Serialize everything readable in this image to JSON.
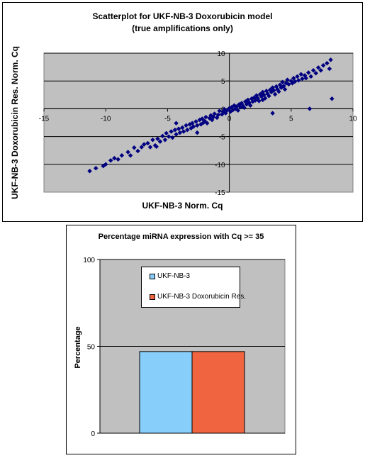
{
  "chart_data": [
    {
      "type": "scatter",
      "title": "Scatterplot for UKF-NB-3 Doxorubicin model",
      "subtitle": "(true amplifications only)",
      "xlabel": "UKF-NB-3 Norm. Cq",
      "ylabel": "UKF-NB-3 Doxorubicin Res. Norm. Cq",
      "xlim": [
        -15,
        10
      ],
      "ylim": [
        -15,
        10
      ],
      "xticks": [
        "-15",
        "-10",
        "-5",
        "0",
        "5",
        "10"
      ],
      "yticks": [
        "10",
        "5",
        "0",
        "-5",
        "-10",
        "-15"
      ],
      "grid": true,
      "colors": {
        "marker": "#000080",
        "plot_bg": "#c0c0c0"
      },
      "series": [
        {
          "points": [
            [
              -11.3,
              -11.2
            ],
            [
              -10.8,
              -10.7
            ],
            [
              -10.2,
              -10.3
            ],
            [
              -10.0,
              -10.0
            ],
            [
              -9.6,
              -9.3
            ],
            [
              -9.3,
              -8.9
            ],
            [
              -9.0,
              -9.1
            ],
            [
              -8.7,
              -8.4
            ],
            [
              -8.2,
              -7.8
            ],
            [
              -8.0,
              -8.4
            ],
            [
              -7.7,
              -7.0
            ],
            [
              -7.4,
              -7.6
            ],
            [
              -7.1,
              -6.9
            ],
            [
              -6.9,
              -6.4
            ],
            [
              -6.6,
              -6.2
            ],
            [
              -6.4,
              -6.9
            ],
            [
              -6.2,
              -5.6
            ],
            [
              -6.0,
              -6.6
            ],
            [
              -5.8,
              -5.4
            ],
            [
              -5.6,
              -5.9
            ],
            [
              -5.4,
              -4.9
            ],
            [
              -5.2,
              -5.6
            ],
            [
              -5.1,
              -4.4
            ],
            [
              -4.9,
              -5.0
            ],
            [
              -4.7,
              -4.1
            ],
            [
              -4.6,
              -5.2
            ],
            [
              -4.4,
              -3.8
            ],
            [
              -4.3,
              -4.6
            ],
            [
              -4.1,
              -3.6
            ],
            [
              -4.0,
              -4.3
            ],
            [
              -3.8,
              -3.4
            ],
            [
              -3.7,
              -4.1
            ],
            [
              -3.5,
              -3.0
            ],
            [
              -3.4,
              -3.8
            ],
            [
              -3.2,
              -2.8
            ],
            [
              -3.1,
              -3.5
            ],
            [
              -3.0,
              -2.6
            ],
            [
              -2.9,
              -3.2
            ],
            [
              -2.7,
              -2.3
            ],
            [
              -2.6,
              -3.0
            ],
            [
              -2.4,
              -2.0
            ],
            [
              -2.3,
              -2.8
            ],
            [
              -2.2,
              -1.8
            ],
            [
              -2.1,
              -2.5
            ],
            [
              -2.0,
              -2.2
            ],
            [
              -1.9,
              -1.5
            ],
            [
              -1.8,
              -2.6
            ],
            [
              -1.6,
              -1.7
            ],
            [
              -1.5,
              -1.2
            ],
            [
              -1.4,
              -2.0
            ],
            [
              -1.3,
              -1.5
            ],
            [
              -1.2,
              -0.9
            ],
            [
              -1.0,
              -1.6
            ],
            [
              -0.9,
              -1.1
            ],
            [
              -0.8,
              -0.4
            ],
            [
              -0.6,
              -1.0
            ],
            [
              -0.5,
              -0.5
            ],
            [
              -0.4,
              -0.1
            ],
            [
              -0.3,
              -0.8
            ],
            [
              -0.2,
              -0.3
            ],
            [
              0.0,
              0.1
            ],
            [
              0.1,
              -0.5
            ],
            [
              0.2,
              0.3
            ],
            [
              0.3,
              -0.2
            ],
            [
              0.4,
              0.6
            ],
            [
              0.5,
              0.0
            ],
            [
              0.6,
              0.4
            ],
            [
              0.7,
              -0.3
            ],
            [
              0.8,
              0.8
            ],
            [
              0.9,
              0.3
            ],
            [
              1.0,
              1.0
            ],
            [
              1.1,
              0.5
            ],
            [
              1.2,
              0.2
            ],
            [
              1.3,
              1.3
            ],
            [
              1.4,
              0.8
            ],
            [
              1.5,
              1.6
            ],
            [
              1.6,
              1.1
            ],
            [
              1.7,
              0.6
            ],
            [
              1.8,
              1.8
            ],
            [
              1.9,
              1.3
            ],
            [
              2.0,
              2.0
            ],
            [
              2.1,
              1.5
            ],
            [
              2.2,
              2.4
            ],
            [
              2.3,
              1.9
            ],
            [
              2.4,
              1.4
            ],
            [
              2.5,
              2.6
            ],
            [
              2.6,
              2.2
            ],
            [
              2.7,
              3.0
            ],
            [
              2.8,
              2.5
            ],
            [
              2.9,
              1.9
            ],
            [
              3.0,
              3.2
            ],
            [
              3.1,
              2.7
            ],
            [
              3.2,
              2.3
            ],
            [
              3.3,
              3.4
            ],
            [
              3.4,
              3.0
            ],
            [
              3.5,
              3.8
            ],
            [
              3.6,
              3.3
            ],
            [
              3.7,
              2.6
            ],
            [
              3.8,
              4.0
            ],
            [
              3.9,
              3.5
            ],
            [
              4.0,
              3.1
            ],
            [
              4.1,
              4.3
            ],
            [
              4.2,
              3.8
            ],
            [
              4.3,
              4.8
            ],
            [
              4.4,
              4.1
            ],
            [
              4.5,
              3.5
            ],
            [
              4.6,
              4.6
            ],
            [
              4.7,
              5.2
            ],
            [
              4.8,
              4.4
            ],
            [
              5.0,
              5.0
            ],
            [
              5.1,
              4.6
            ],
            [
              5.2,
              5.5
            ],
            [
              5.3,
              4.9
            ],
            [
              5.5,
              5.8
            ],
            [
              5.6,
              5.1
            ],
            [
              5.8,
              6.2
            ],
            [
              5.9,
              5.4
            ],
            [
              6.1,
              6.0
            ],
            [
              6.2,
              5.5
            ],
            [
              6.4,
              6.5
            ],
            [
              6.6,
              5.8
            ],
            [
              6.8,
              6.9
            ],
            [
              7.0,
              6.4
            ],
            [
              7.2,
              7.4
            ],
            [
              7.4,
              6.9
            ],
            [
              7.6,
              7.8
            ],
            [
              7.9,
              8.2
            ],
            [
              8.2,
              8.8
            ],
            [
              8.1,
              7.2
            ],
            [
              3.5,
              -0.8
            ],
            [
              6.5,
              0.0
            ],
            [
              8.3,
              1.8
            ],
            [
              2.7,
              1.6
            ],
            [
              -4.3,
              -2.6
            ],
            [
              -5.9,
              -6.8
            ],
            [
              -2.6,
              -4.3
            ]
          ]
        }
      ]
    },
    {
      "type": "bar",
      "title": "Percentage miRNA expression with Cq >= 35",
      "ylabel": "Percentage",
      "ylim": [
        0,
        100
      ],
      "yticks": [
        "100",
        "50",
        "0"
      ],
      "grid": true,
      "legend": "top-center",
      "colors": {
        "plot_bg": "#c0c0c0"
      },
      "series": [
        {
          "name": "UKF-NB-3",
          "value": 47,
          "color": "#87cefa"
        },
        {
          "name": "UKF-NB-3 Doxorubicin Res.",
          "value": 47,
          "color": "#f0653f"
        }
      ]
    }
  ]
}
